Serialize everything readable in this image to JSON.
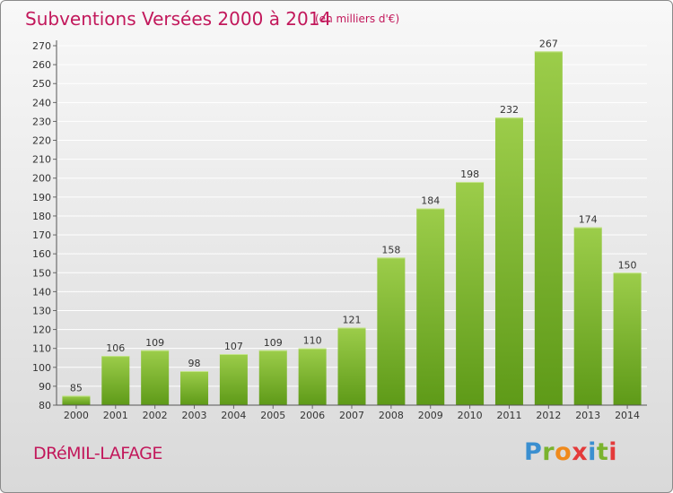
{
  "header": {
    "title": "Subventions Versées 2000 à 2014",
    "unit": "(en milliers d'€)"
  },
  "footer": {
    "commune": "DRéMIL-LAFAGE",
    "logo_text": "Proxiti"
  },
  "colors": {
    "title": "#c2185b",
    "bar_light": "#9ccd4a",
    "bar_dark": "#5e9a18",
    "grid": "#ffffff"
  },
  "chart_data": {
    "type": "bar",
    "title": "Subventions Versées 2000 à 2014",
    "xlabel": "",
    "ylabel": "",
    "categories": [
      "2000",
      "2001",
      "2002",
      "2003",
      "2004",
      "2005",
      "2006",
      "2007",
      "2008",
      "2009",
      "2010",
      "2011",
      "2012",
      "2013",
      "2014"
    ],
    "values": [
      85,
      106,
      109,
      98,
      107,
      109,
      110,
      121,
      158,
      184,
      198,
      232,
      267,
      174,
      150
    ],
    "ylim": [
      80,
      270
    ],
    "yticks": [
      80,
      90,
      100,
      110,
      120,
      130,
      140,
      150,
      160,
      170,
      180,
      190,
      200,
      210,
      220,
      230,
      240,
      250,
      260,
      270
    ],
    "grid": true,
    "data_labels": true
  }
}
